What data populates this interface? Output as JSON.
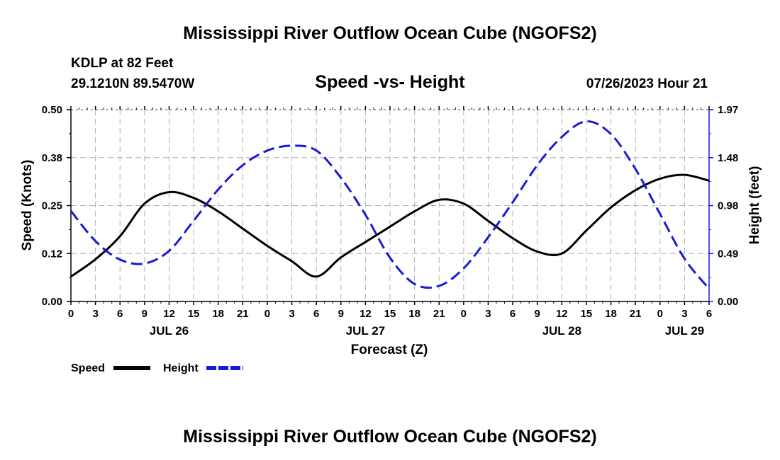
{
  "header": {
    "title": "Mississippi River Outflow Ocean Cube (NGOFS2)",
    "station": "KDLP at 82 Feet",
    "coords": "29.1210N  89.5470W",
    "subtitle": "Speed -vs- Height",
    "datetime": "07/26/2023 Hour 21",
    "footer_title": "Mississippi River Outflow Ocean Cube (NGOFS2)"
  },
  "chart_data": {
    "type": "line",
    "title": "Speed -vs- Height",
    "xlabel": "Forecast (Z)",
    "ylabel": "Speed (Knots)",
    "y2label": "Height (feet)",
    "x_unit": "hours since JUL 26 00Z",
    "xlim": [
      0,
      78
    ],
    "ylim": [
      0,
      0.5
    ],
    "y2lim": [
      0,
      1.97
    ],
    "grid": true,
    "x_ticks": [
      0,
      3,
      6,
      9,
      12,
      15,
      18,
      21,
      24,
      27,
      30,
      33,
      36,
      39,
      42,
      45,
      48,
      51,
      54,
      57,
      60,
      63,
      66,
      69,
      72,
      75,
      78
    ],
    "x_tick_labels": [
      "0",
      "3",
      "6",
      "9",
      "12",
      "15",
      "18",
      "21",
      "0",
      "3",
      "6",
      "9",
      "12",
      "15",
      "18",
      "21",
      "0",
      "3",
      "6",
      "9",
      "12",
      "15",
      "18",
      "21",
      "0",
      "3",
      "6"
    ],
    "date_labels": [
      {
        "x": 12,
        "label": "JUL 26"
      },
      {
        "x": 36,
        "label": "JUL 27"
      },
      {
        "x": 60,
        "label": "JUL 28"
      },
      {
        "x": 75,
        "label": "JUL 29"
      }
    ],
    "y_ticks": [
      0,
      0.125,
      0.25,
      0.375,
      0.5
    ],
    "y_tick_labels": [
      "0.00",
      "0.12",
      "0.25",
      "0.38",
      "0.50"
    ],
    "y2_ticks": [
      0,
      0.4925,
      0.985,
      1.4775,
      1.97
    ],
    "y2_tick_labels": [
      "0.00",
      "0.49",
      "0.98",
      "1.48",
      "1.97"
    ],
    "legend_position": "bottom-left",
    "series": [
      {
        "name": "Speed",
        "axis": "left",
        "color": "#000000",
        "style": "solid",
        "x": [
          0,
          3,
          6,
          9,
          12,
          15,
          18,
          21,
          24,
          27,
          30,
          33,
          36,
          39,
          42,
          45,
          48,
          51,
          54,
          57,
          60,
          63,
          66,
          69,
          72,
          75,
          78
        ],
        "values": [
          0.065,
          0.11,
          0.17,
          0.255,
          0.285,
          0.27,
          0.235,
          0.19,
          0.145,
          0.105,
          0.065,
          0.115,
          0.155,
          0.195,
          0.235,
          0.265,
          0.255,
          0.21,
          0.165,
          0.13,
          0.125,
          0.185,
          0.245,
          0.29,
          0.32,
          0.33,
          0.315
        ]
      },
      {
        "name": "Height",
        "axis": "right",
        "color": "#1a1ad8",
        "style": "dashed",
        "x": [
          0,
          3,
          6,
          9,
          12,
          15,
          18,
          21,
          24,
          27,
          30,
          33,
          36,
          39,
          42,
          45,
          48,
          51,
          54,
          57,
          60,
          63,
          66,
          69,
          72,
          75,
          78
        ],
        "values": [
          0.93,
          0.62,
          0.43,
          0.39,
          0.52,
          0.83,
          1.15,
          1.4,
          1.55,
          1.6,
          1.55,
          1.27,
          0.89,
          0.45,
          0.18,
          0.16,
          0.34,
          0.66,
          1.02,
          1.4,
          1.69,
          1.85,
          1.72,
          1.36,
          0.9,
          0.44,
          0.13
        ]
      }
    ]
  }
}
